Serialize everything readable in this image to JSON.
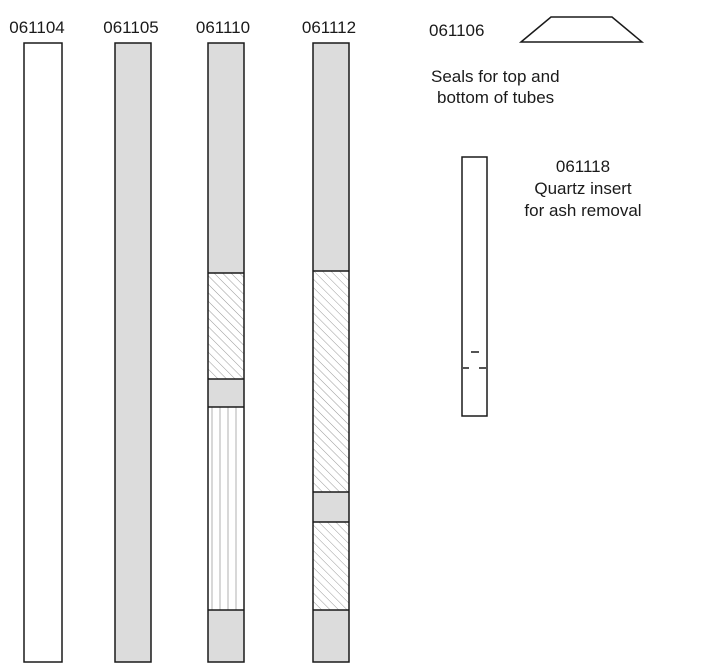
{
  "tubes": [
    {
      "part": "061104",
      "sections": [
        {
          "fill": "plain"
        }
      ]
    },
    {
      "part": "061105",
      "sections": [
        {
          "fill": "gray"
        }
      ]
    },
    {
      "part": "061110",
      "sections": [
        {
          "fill": "gray"
        },
        {
          "fill": "diagonal-hatch"
        },
        {
          "fill": "gray"
        },
        {
          "fill": "vertical-hatch"
        },
        {
          "fill": "gray"
        }
      ]
    },
    {
      "part": "061112",
      "sections": [
        {
          "fill": "gray"
        },
        {
          "fill": "diagonal-hatch"
        },
        {
          "fill": "gray"
        },
        {
          "fill": "diagonal-hatch"
        },
        {
          "fill": "gray"
        }
      ]
    }
  ],
  "seal": {
    "part": "061106",
    "caption_line1": "Seals for top and",
    "caption_line2": "bottom of tubes"
  },
  "insert": {
    "part": "061118",
    "caption_line1": "Quartz insert",
    "caption_line2": "for ash removal"
  },
  "colors": {
    "gray": "#dcdcdc",
    "line": "#1a1a1a",
    "hatch": "#9a9a9a"
  }
}
